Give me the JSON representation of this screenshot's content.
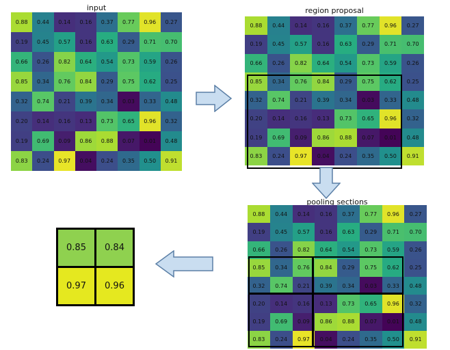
{
  "titles": {
    "input": "input",
    "region": "region proposal",
    "pooling": "pooling sections"
  },
  "matrix": [
    [
      "0.88",
      "0.44",
      "0.14",
      "0.16",
      "0.37",
      "0.77",
      "0.96",
      "0.27"
    ],
    [
      "0.19",
      "0.45",
      "0.57",
      "0.16",
      "0.63",
      "0.29",
      "0.71",
      "0.70"
    ],
    [
      "0.66",
      "0.26",
      "0.82",
      "0.64",
      "0.54",
      "0.73",
      "0.59",
      "0.26"
    ],
    [
      "0.85",
      "0.34",
      "0.76",
      "0.84",
      "0.29",
      "0.75",
      "0.62",
      "0.25"
    ],
    [
      "0.32",
      "0.74",
      "0.21",
      "0.39",
      "0.34",
      "0.03",
      "0.33",
      "0.48"
    ],
    [
      "0.20",
      "0.14",
      "0.16",
      "0.13",
      "0.73",
      "0.65",
      "0.96",
      "0.32"
    ],
    [
      "0.19",
      "0.69",
      "0.09",
      "0.86",
      "0.88",
      "0.07",
      "0.01",
      "0.48"
    ],
    [
      "0.83",
      "0.24",
      "0.97",
      "0.04",
      "0.24",
      "0.35",
      "0.50",
      "0.91"
    ]
  ],
  "result": [
    "0.85",
    "0.84",
    "0.97",
    "0.96"
  ],
  "colors": {
    "arrow_fill": "#c9ddf0",
    "arrow_stroke": "#5b7fa6",
    "result_top": "#8fd14f",
    "result_bottom": "#e5e81f"
  }
}
